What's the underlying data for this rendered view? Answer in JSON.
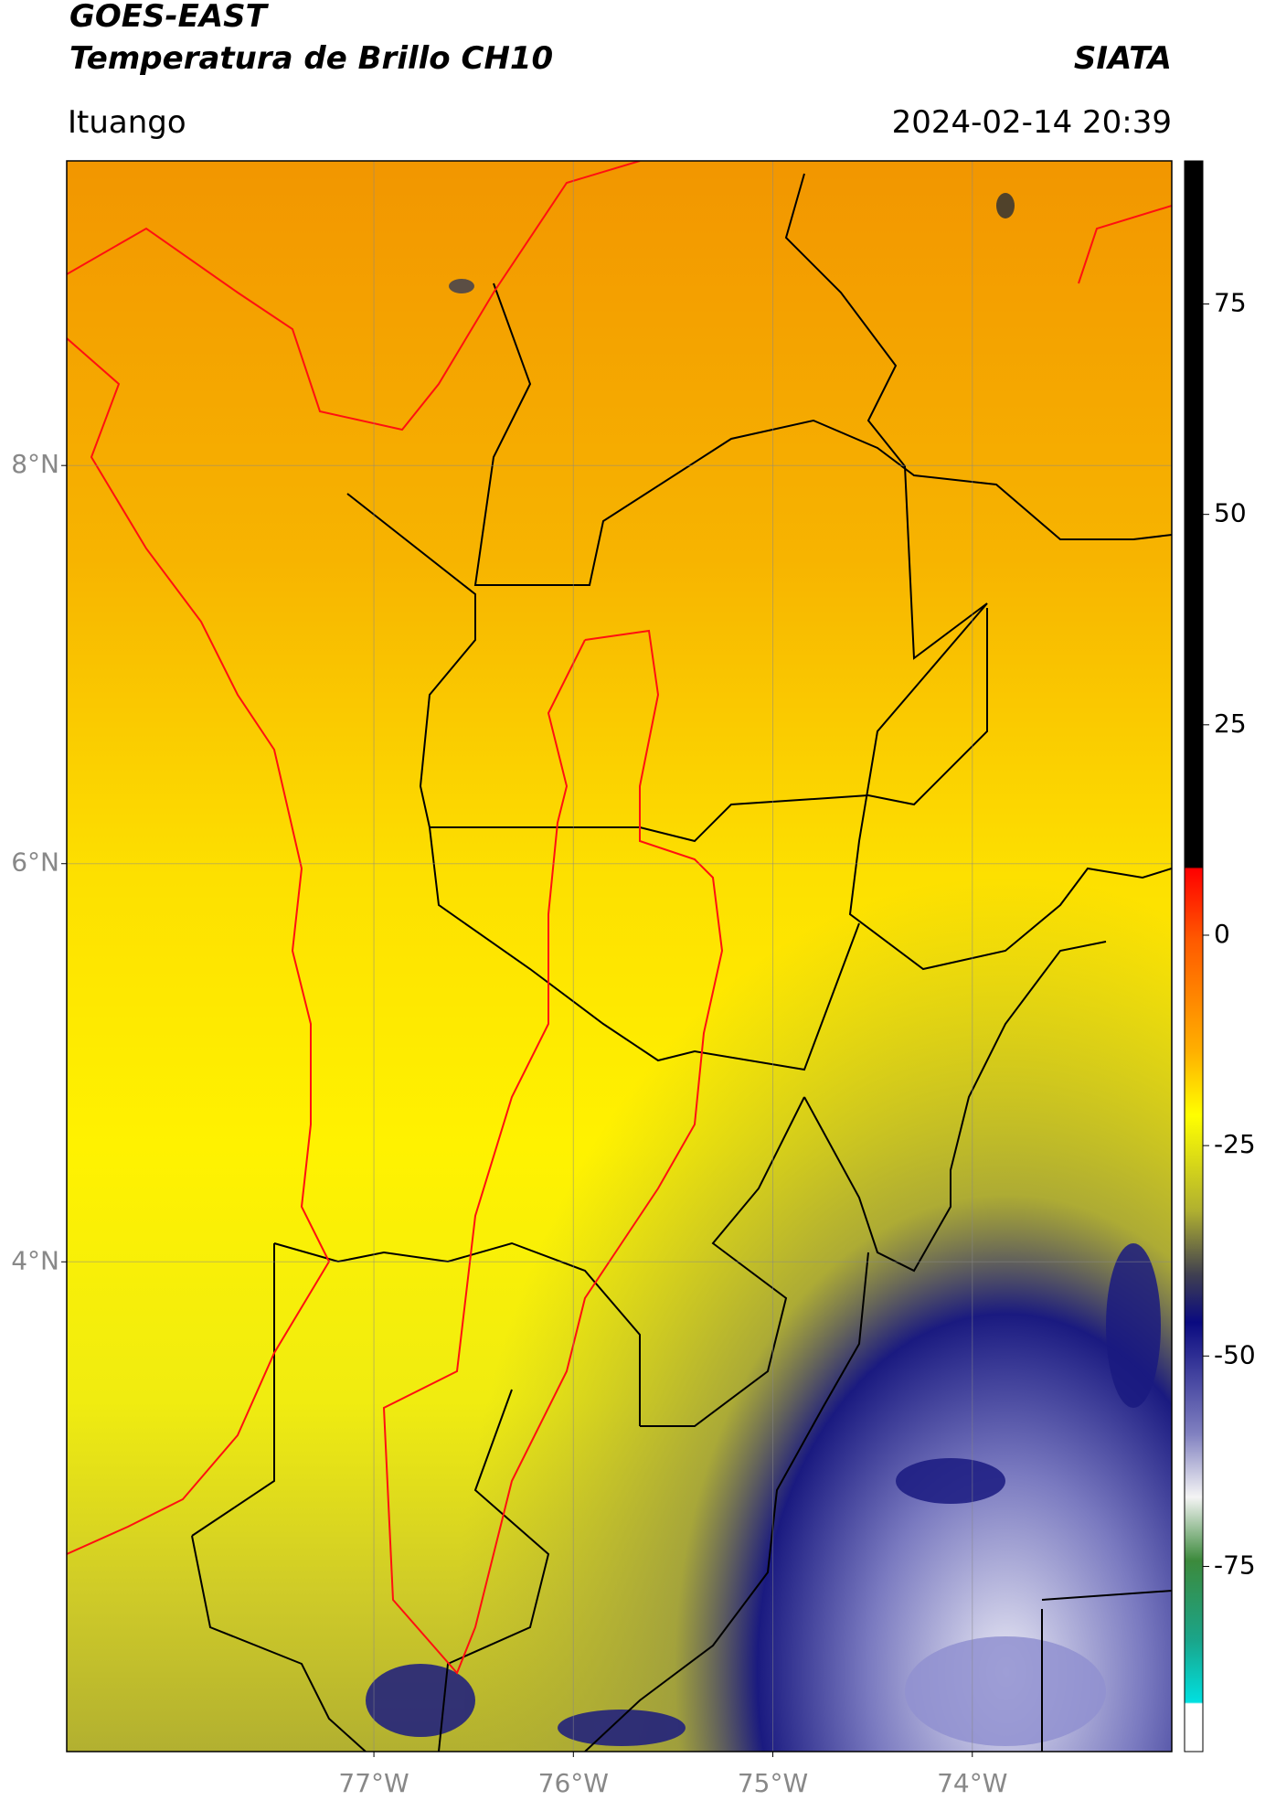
{
  "header": {
    "title": "GOES-EAST",
    "subtitle": "Temperatura de Brillo CH10",
    "brand": "SIATA",
    "location": "Ituango",
    "datetime": "2024-02-14 20:39"
  },
  "map": {
    "xlim": [
      -78.54,
      -73.0
    ],
    "ylim": [
      1.54,
      9.53
    ],
    "yticks": [
      {
        "value": 8,
        "label": "8°N"
      },
      {
        "value": 6,
        "label": "6°N"
      },
      {
        "value": 4,
        "label": "4°N"
      }
    ],
    "xticks": [
      {
        "value": -77,
        "label": "77°W"
      },
      {
        "value": -76,
        "label": "76°W"
      },
      {
        "value": -75,
        "label": "75°W"
      },
      {
        "value": -74,
        "label": "74°W"
      }
    ],
    "grid": true
  },
  "colorbar": {
    "lim": [
      -97,
      92
    ],
    "ticks": [
      75,
      50,
      25,
      0,
      -25,
      -50,
      -75
    ]
  }
}
